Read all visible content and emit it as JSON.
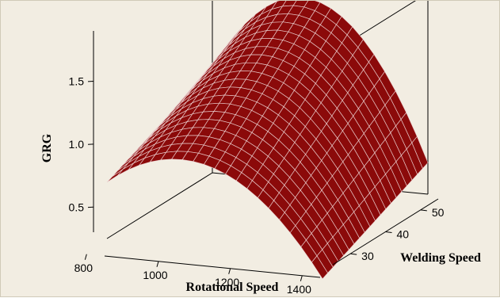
{
  "chart_data": {
    "type": "surface",
    "title": "",
    "xlabel": "Rotational Speed",
    "ylabel": "Welding Speed",
    "zlabel": "GRG",
    "x_ticks": [
      "800",
      "1000",
      "1200",
      "1400"
    ],
    "y_ticks": [
      "30",
      "40",
      "50"
    ],
    "z_ticks": [
      "0.5",
      "1.0",
      "1.5"
    ],
    "xlim": [
      850,
      1450
    ],
    "ylim": [
      25,
      55
    ],
    "zlim": [
      0.3,
      1.9
    ],
    "surface_x": [
      850,
      1450
    ],
    "surface_y": [
      25,
      55
    ],
    "grid": {
      "nx": 20,
      "ny": 20
    },
    "model": {
      "form": "quadratic",
      "z_peak": 1.76,
      "x_peak": 1120,
      "y_peak": 55,
      "corners": {
        "x850_y25": 0.55,
        "x1450_y25": 0.15,
        "x850_y55": 0.78,
        "x1450_y55": 0.55
      }
    },
    "colors": {
      "surface": "#8b0a0a",
      "mesh": "#f0d8d8",
      "background": "#f2ede2",
      "axes": "#000000"
    }
  }
}
